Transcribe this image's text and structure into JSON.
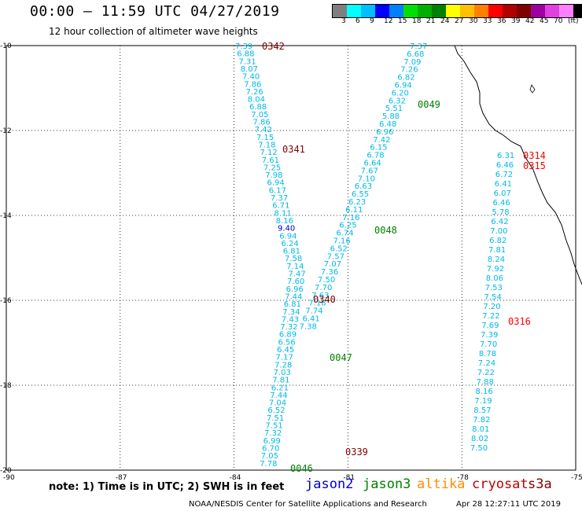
{
  "header": {
    "title": "00:00 – 11:59 UTC 04/27/2019",
    "subtitle": "12 hour collection of altimeter wave heights"
  },
  "legend": {
    "colors": [
      "#7f7f7f",
      "#00ffff",
      "#00bfff",
      "#0000ff",
      "#0080ff",
      "#00e000",
      "#00b000",
      "#008000",
      "#ffff00",
      "#ffc000",
      "#ff8000",
      "#ff0000",
      "#b00000",
      "#800000",
      "#a000a0",
      "#e040e0",
      "#ff80ff",
      "#000000"
    ],
    "labels": [
      "3",
      "6",
      "9",
      "12",
      "15",
      "18",
      "21",
      "24",
      "27",
      "30",
      "33",
      "36",
      "39",
      "42",
      "45",
      "70"
    ],
    "unit": "(ft)"
  },
  "map": {
    "lon_ticks": [
      "-90",
      "-87",
      "-84",
      "-81",
      "-78",
      "-75"
    ],
    "lat_ticks": [
      "-10",
      "-12",
      "-14",
      "-16",
      "-18",
      "-20"
    ],
    "pass_labels": [
      {
        "text": "0342",
        "color": "#800000"
      },
      {
        "text": "0341",
        "color": "#800000"
      },
      {
        "text": "0340",
        "color": "#800000"
      },
      {
        "text": "0339",
        "color": "#800000"
      },
      {
        "text": "0049",
        "color": "#008000"
      },
      {
        "text": "0048",
        "color": "#008000"
      },
      {
        "text": "0047",
        "color": "#008000"
      },
      {
        "text": "0046",
        "color": "#008000"
      },
      {
        "text": "0314",
        "color": "#ff0000"
      },
      {
        "text": "0315",
        "color": "#ff0000"
      },
      {
        "text": "0316",
        "color": "#ff0000"
      }
    ],
    "track_a": [
      "7.39",
      "6.88",
      "7.31",
      "8.07",
      "7.40",
      "7.86",
      "7.26",
      "8.04",
      "6.88",
      "7.05",
      "7.86",
      "7.42",
      "7.15",
      "7.18",
      "7.12",
      "7.61",
      "7.25",
      "7.98",
      "6.94",
      "6.17",
      "7.37",
      "6.71",
      "8.11",
      "8.16",
      "9.40",
      "6.94",
      "6.24",
      "6.81",
      "7.58",
      "7.14",
      "7.47",
      "7.60",
      "6.96",
      "7.44",
      "6.81",
      "7.34",
      "7.43",
      "7.32",
      "6.89",
      "6.56",
      "6.45",
      "7.17",
      "7.28",
      "7.03",
      "7.81",
      "6.21",
      "7.44",
      "7.04",
      "6.52",
      "7.51",
      "7.51",
      "7.32",
      "6.99",
      "6.70",
      "7.05",
      "7.78"
    ],
    "track_b": [
      "7.37",
      "6.68",
      "7.09",
      "7.26",
      "6.82",
      "6.94",
      "6.20",
      "6.32",
      "5.51",
      "5.88",
      "6.48",
      "6.96",
      "7.42",
      "6.15",
      "6.78",
      "6.64",
      "7.67",
      "7.10",
      "6.63",
      "6.55",
      "6.23",
      "6.11",
      "7.16",
      "6.25",
      "6.74",
      "7.16",
      "6.52",
      "7.57",
      "7.07",
      "7.36",
      "7.50",
      "7.70",
      "7.63",
      "7.18",
      "7.74",
      "6.41",
      "7.38"
    ],
    "track_c": [
      "6.31",
      "6.46",
      "6.72",
      "6.41",
      "6.07",
      "6.46",
      "5.78",
      "6.42",
      "7.00",
      "6.82",
      "7.81",
      "8.24",
      "7.92",
      "8.06",
      "7.53",
      "7.54",
      "7.20",
      "7.22",
      "7.69",
      "7.39",
      "7.70",
      "8.78",
      "7.24",
      "7.22",
      "7.88",
      "8.16",
      "7.19",
      "8.57",
      "7.82",
      "8.01",
      "8.02",
      "7.50"
    ]
  },
  "satellites": [
    {
      "name": "jason2",
      "color": "#0000c8"
    },
    {
      "name": "jason3",
      "color": "#008000"
    },
    {
      "name": "altika",
      "color": "#ff8c00"
    },
    {
      "name": "cryosat",
      "color": "#c00000"
    },
    {
      "name": "s3a",
      "color": "#800000"
    }
  ],
  "footer": {
    "note": "note:  1) Time is in UTC;  2) SWH is in feet",
    "credit": "NOAA/NESDIS Center for Satellite Applications and Research",
    "timestamp": "Apr 28 12:27:11 UTC 2019"
  }
}
